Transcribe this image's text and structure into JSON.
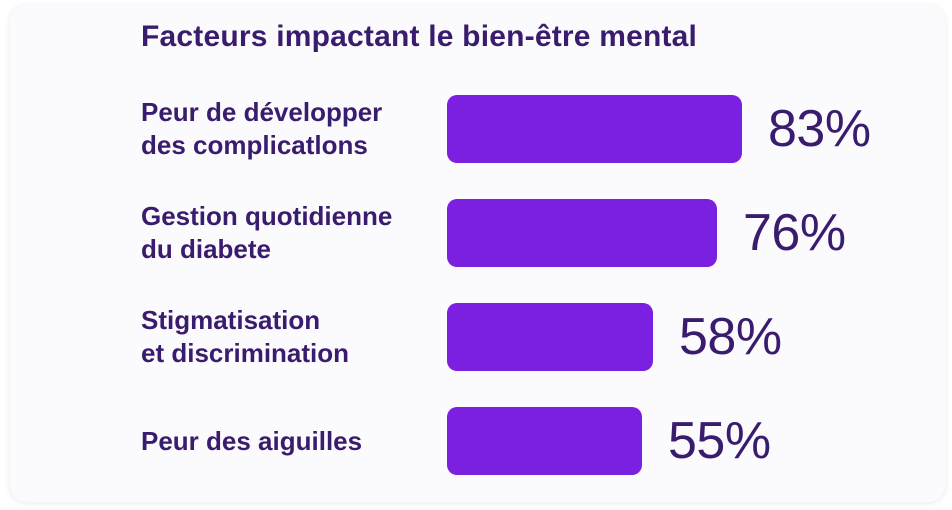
{
  "chart_data": {
    "type": "bar",
    "orientation": "horizontal",
    "title": "Facteurs impactant le bien-être mental",
    "categories": [
      "Peur de développer\ndes complicatlons",
      "Gestion quotidienne\ndu diabete",
      "Stigmatisation\net discrimination",
      "Peur des aiguilles"
    ],
    "values": [
      83,
      76,
      58,
      55
    ],
    "value_labels": [
      "83%",
      "76%",
      "58%",
      "55%"
    ],
    "xlim": [
      0,
      100
    ],
    "grid": false,
    "legend": "none",
    "bar_color": "#7b1fe0",
    "text_color": "#3a1c6e",
    "card_background": "#fbfafc",
    "pixels_per_unit": 3.55
  }
}
